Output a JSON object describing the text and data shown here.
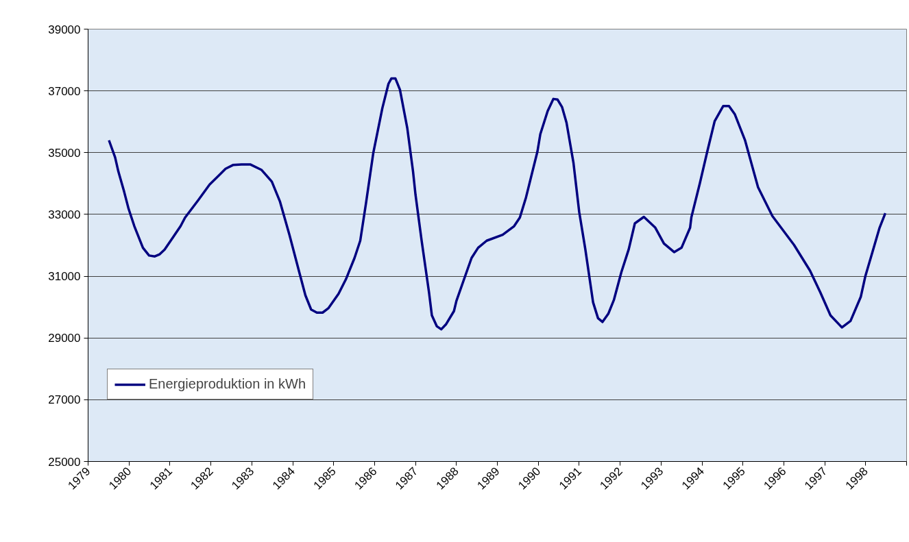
{
  "chart_data": {
    "type": "line",
    "x": [
      1979.51,
      1979.66,
      1979.74,
      1979.88,
      1979.99,
      1980.13,
      1980.34,
      1980.49,
      1980.63,
      1980.75,
      1980.87,
      1981.09,
      1981.26,
      1981.37,
      1981.69,
      1981.97,
      1982.15,
      1982.36,
      1982.54,
      1982.75,
      1982.96,
      1983.24,
      1983.49,
      1983.69,
      1983.92,
      1984.16,
      1984.31,
      1984.45,
      1984.59,
      1984.73,
      1984.87,
      1985.12,
      1985.3,
      1985.51,
      1985.65,
      1985.79,
      1985.97,
      1986.19,
      1986.34,
      1986.41,
      1986.51,
      1986.62,
      1986.8,
      1986.94,
      1987.0,
      1987.15,
      1987.33,
      1987.4,
      1987.52,
      1987.63,
      1987.75,
      1987.94,
      1988.0,
      1988.21,
      1988.37,
      1988.53,
      1988.74,
      1989.13,
      1989.41,
      1989.55,
      1989.7,
      1989.98,
      1990.05,
      1990.23,
      1990.37,
      1990.47,
      1990.58,
      1990.69,
      1990.86,
      1991.0,
      1991.15,
      1991.34,
      1991.46,
      1991.57,
      1991.71,
      1991.85,
      1992.03,
      1992.21,
      1992.36,
      1992.58,
      1992.86,
      1993.07,
      1993.32,
      1993.5,
      1993.71,
      1993.74,
      1993.95,
      1994.13,
      1994.31,
      1994.52,
      1994.66,
      1994.8,
      1995.05,
      1995.37,
      1995.72,
      1996.25,
      1996.64,
      1996.89,
      1997.14,
      1997.42,
      1997.63,
      1997.88,
      1997.99,
      1998.34,
      1998.48
    ],
    "series": [
      {
        "name": "Energieproduktion in kWh",
        "color": "#000080",
        "values": [
          35400,
          34850,
          34390,
          33740,
          33180,
          32620,
          31920,
          31670,
          31640,
          31710,
          31860,
          32290,
          32620,
          32900,
          33460,
          33970,
          34200,
          34480,
          34600,
          34620,
          34620,
          34440,
          34060,
          33410,
          32340,
          31130,
          30380,
          29920,
          29820,
          29820,
          29960,
          30430,
          30900,
          31590,
          32150,
          33360,
          35000,
          36440,
          37230,
          37400,
          37400,
          37040,
          35790,
          34390,
          33640,
          32150,
          30480,
          29730,
          29380,
          29280,
          29450,
          29870,
          30200,
          30990,
          31590,
          31920,
          32150,
          32340,
          32620,
          32900,
          33550,
          35040,
          35600,
          36350,
          36740,
          36720,
          36480,
          35970,
          34670,
          33080,
          31870,
          30150,
          29640,
          29520,
          29780,
          30240,
          31130,
          31870,
          32710,
          32920,
          32570,
          32060,
          31780,
          31920,
          32570,
          32900,
          34020,
          35040,
          36020,
          36510,
          36510,
          36250,
          35410,
          33880,
          32950,
          32010,
          31180,
          30480,
          29730,
          29340,
          29550,
          30330,
          30990,
          32570,
          33040
        ]
      }
    ],
    "xlim": [
      1979,
      1999
    ],
    "xticks": [
      1979,
      1980,
      1981,
      1982,
      1983,
      1984,
      1985,
      1986,
      1987,
      1988,
      1989,
      1990,
      1991,
      1992,
      1993,
      1994,
      1995,
      1996,
      1997,
      1998,
      {
        "value": 1999,
        "label": null
      }
    ],
    "ylim": [
      25000,
      39000
    ],
    "yticks": [
      25000,
      27000,
      29000,
      31000,
      33000,
      35000,
      37000,
      39000
    ],
    "grid": "y",
    "legend": "bottom left",
    "marker": "none",
    "line_style": "solid"
  }
}
